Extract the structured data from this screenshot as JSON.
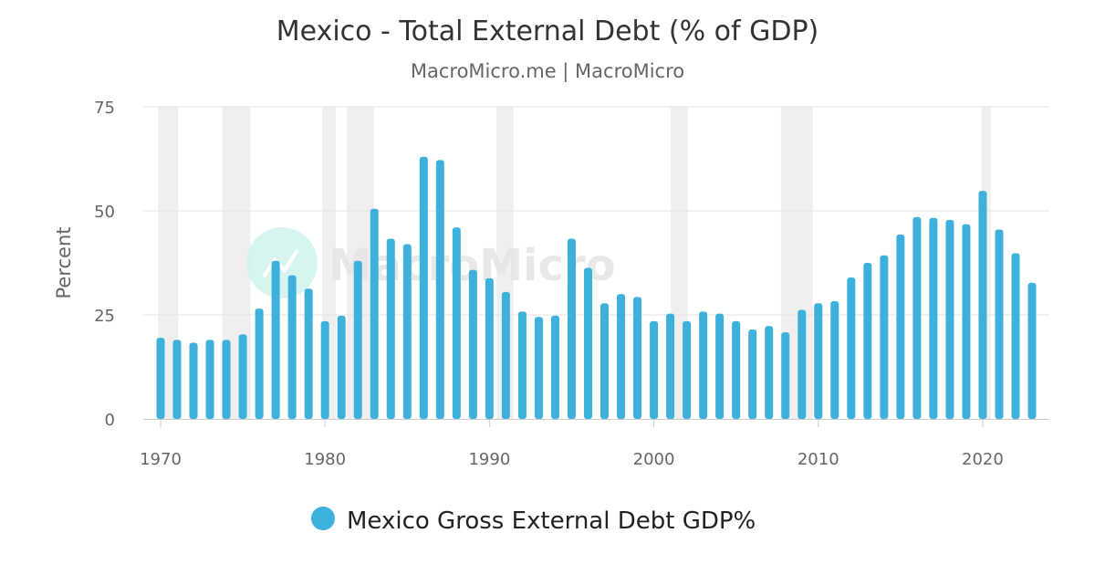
{
  "chart_data": {
    "type": "bar",
    "title": "Mexico - Total External Debt (% of GDP)",
    "subtitle": "MacroMicro.me | MacroMicro",
    "watermark": "MacroMicro",
    "xlabel": "",
    "ylabel": "Percent",
    "ylim": [
      0,
      75
    ],
    "xlim": [
      1970,
      2023
    ],
    "yticks": [
      0,
      25,
      50,
      75
    ],
    "xticks": [
      1970,
      1980,
      1990,
      2000,
      2010,
      2020
    ],
    "grid": true,
    "legend_position": "bottom-center",
    "recession_bands": [
      [
        1970.0,
        1970.9
      ],
      [
        1973.9,
        1975.3
      ],
      [
        1980.0,
        1980.5
      ],
      [
        1981.5,
        1982.8
      ],
      [
        1990.6,
        1991.3
      ],
      [
        2001.2,
        2001.9
      ],
      [
        2007.9,
        2009.5
      ],
      [
        2020.1,
        2020.3
      ]
    ],
    "series": [
      {
        "name": "Mexico Gross External Debt GDP%",
        "color": "#3db0db",
        "x": [
          1970,
          1971,
          1972,
          1973,
          1974,
          1975,
          1976,
          1977,
          1978,
          1979,
          1980,
          1981,
          1982,
          1983,
          1984,
          1985,
          1986,
          1987,
          1988,
          1989,
          1990,
          1991,
          1992,
          1993,
          1994,
          1995,
          1996,
          1997,
          1998,
          1999,
          2000,
          2001,
          2002,
          2003,
          2004,
          2005,
          2006,
          2007,
          2008,
          2009,
          2010,
          2011,
          2012,
          2013,
          2014,
          2015,
          2016,
          2017,
          2018,
          2019,
          2020,
          2021,
          2022,
          2023
        ],
        "values": [
          19.5,
          19.0,
          18.3,
          19.0,
          19.0,
          20.3,
          26.5,
          38.0,
          34.5,
          31.3,
          23.5,
          24.8,
          38.0,
          50.5,
          43.3,
          42.0,
          63.0,
          62.2,
          46.0,
          35.8,
          33.8,
          30.5,
          25.8,
          24.5,
          24.8,
          43.3,
          36.3,
          27.8,
          30.0,
          29.3,
          23.5,
          25.3,
          23.5,
          25.8,
          25.3,
          23.5,
          21.5,
          22.3,
          20.8,
          26.2,
          27.8,
          28.3,
          34.0,
          37.5,
          39.3,
          44.3,
          48.5,
          48.3,
          47.8,
          46.8,
          54.8,
          45.5,
          39.8,
          32.7
        ]
      }
    ]
  }
}
